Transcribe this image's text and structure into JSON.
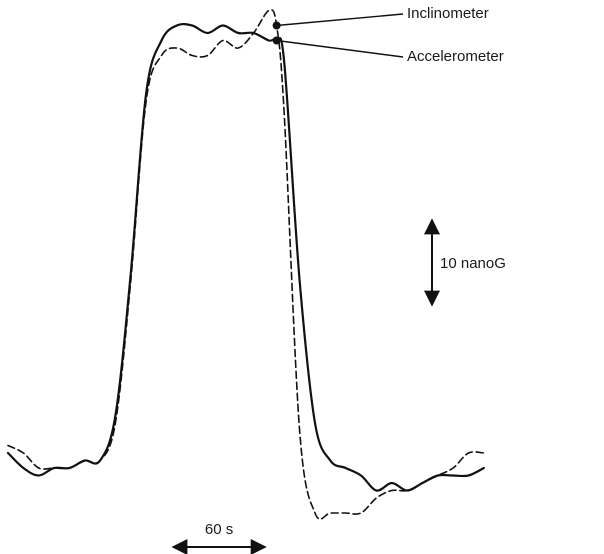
{
  "chart_data": {
    "type": "line",
    "title": "",
    "xlabel": "",
    "ylabel": "",
    "series": [
      {
        "name": "Accelerometer",
        "style": "solid",
        "points": [
          [
            0,
            2
          ],
          [
            10,
            0
          ],
          [
            20,
            -1
          ],
          [
            30,
            0
          ],
          [
            40,
            0
          ],
          [
            50,
            1
          ],
          [
            60,
            1
          ],
          [
            70,
            7
          ],
          [
            80,
            26
          ],
          [
            90,
            50
          ],
          [
            100,
            57
          ],
          [
            110,
            59
          ],
          [
            120,
            59
          ],
          [
            130,
            58
          ],
          [
            140,
            59
          ],
          [
            150,
            58
          ],
          [
            160,
            58
          ],
          [
            170,
            57
          ],
          [
            175,
            57
          ],
          [
            180,
            54
          ],
          [
            190,
            25
          ],
          [
            200,
            6
          ],
          [
            210,
            1
          ],
          [
            220,
            0
          ],
          [
            230,
            -1
          ],
          [
            240,
            -3
          ],
          [
            250,
            -2
          ],
          [
            260,
            -3
          ],
          [
            270,
            -2
          ],
          [
            280,
            -1
          ],
          [
            290,
            -1
          ],
          [
            300,
            -1
          ],
          [
            310,
            0
          ]
        ]
      },
      {
        "name": "Inclinometer",
        "style": "dashed",
        "points": [
          [
            0,
            3
          ],
          [
            10,
            2
          ],
          [
            20,
            0
          ],
          [
            30,
            0
          ],
          [
            40,
            0
          ],
          [
            50,
            1
          ],
          [
            60,
            1
          ],
          [
            70,
            6
          ],
          [
            80,
            25
          ],
          [
            90,
            49
          ],
          [
            100,
            55
          ],
          [
            110,
            56
          ],
          [
            120,
            55
          ],
          [
            130,
            55
          ],
          [
            140,
            57
          ],
          [
            150,
            56
          ],
          [
            160,
            58
          ],
          [
            170,
            61
          ],
          [
            175,
            59
          ],
          [
            180,
            47
          ],
          [
            190,
            5
          ],
          [
            200,
            -6
          ],
          [
            210,
            -6
          ],
          [
            220,
            -6
          ],
          [
            230,
            -6
          ],
          [
            240,
            -4
          ],
          [
            250,
            -3
          ],
          [
            260,
            -3
          ],
          [
            270,
            -2
          ],
          [
            280,
            -1
          ],
          [
            290,
            0
          ],
          [
            300,
            2
          ],
          [
            310,
            2
          ]
        ]
      }
    ],
    "annotations": [
      {
        "text": "Inclinometer",
        "series": "Inclinometer",
        "at_x": 175
      },
      {
        "text": "Accelerometer",
        "series": "Accelerometer",
        "at_x": 175
      }
    ],
    "scale_bars": [
      {
        "axis": "y",
        "value": 10,
        "label": "10 nanoG"
      },
      {
        "axis": "x",
        "value": 60,
        "label": "60 s"
      }
    ],
    "axes_visible": false,
    "grid": false
  }
}
